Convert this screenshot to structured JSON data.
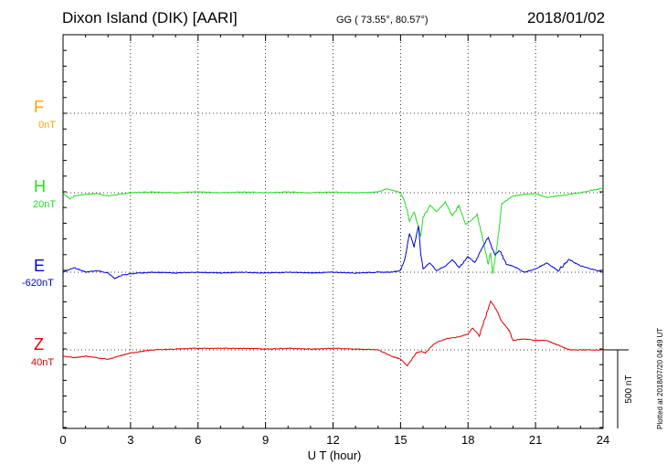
{
  "header": {
    "station": "Dixon Island (DIK)  [AARI]",
    "coords": "GG ( 73.55°,  80.57°)",
    "date": "2018/01/02"
  },
  "components": [
    {
      "label": "F",
      "baseline": "0nT",
      "color": "#ffa500"
    },
    {
      "label": "H",
      "baseline": "20nT",
      "color": "#22dd22"
    },
    {
      "label": "E",
      "baseline": "-620nT",
      "color": "#0000dd"
    },
    {
      "label": "Z",
      "baseline": "40nT",
      "color": "#dd0000"
    }
  ],
  "footer": {
    "scale_label": "500 nT",
    "plotted": "Plotted at 2018/07/20 04:49 UT"
  },
  "chart_data": {
    "type": "line",
    "title": "Dixon Island (DIK)  [AARI]",
    "xlabel": "U T (hour)",
    "ylabel": "",
    "xlim": [
      0,
      24
    ],
    "x_ticks": [
      0,
      3,
      6,
      9,
      12,
      15,
      18,
      21,
      24
    ],
    "grid": true,
    "scale_nT_per_division": 500,
    "series": [
      {
        "name": "F",
        "baseline_nT": 0,
        "color": "#ffa500",
        "x": [],
        "y": []
      },
      {
        "name": "H",
        "baseline_nT": 20,
        "color": "#22dd22",
        "x": [
          0,
          0.3,
          0.5,
          1,
          1.5,
          2,
          2.5,
          3,
          4,
          5,
          6,
          7,
          8,
          9,
          10,
          11,
          12,
          13,
          14,
          14.4,
          14.8,
          15,
          15.2,
          15.4,
          15.6,
          15.8,
          15.9,
          16,
          16.3,
          16.6,
          17,
          17.3,
          17.6,
          17.9,
          18.1,
          18.4,
          18.7,
          18.9,
          19,
          19.1,
          19.3,
          19.5,
          19.8,
          20,
          20.5,
          21,
          21.5,
          22,
          22.5,
          23,
          23.5,
          24
        ],
        "y": [
          0,
          -40,
          -20,
          -10,
          -5,
          -20,
          -10,
          0,
          5,
          0,
          5,
          0,
          5,
          0,
          5,
          0,
          5,
          0,
          5,
          25,
          10,
          0,
          -60,
          -180,
          -120,
          -220,
          -280,
          -160,
          -80,
          -120,
          -60,
          -150,
          -80,
          -200,
          -180,
          -140,
          -320,
          -460,
          -380,
          -520,
          -330,
          -70,
          -40,
          -20,
          -10,
          -5,
          -30,
          -20,
          -10,
          0,
          15,
          30
        ]
      },
      {
        "name": "E",
        "baseline_nT": -620,
        "color": "#0000dd",
        "x": [
          0,
          0.5,
          1,
          1.5,
          2,
          2.3,
          2.6,
          3,
          4,
          5,
          6,
          7,
          8,
          9,
          10,
          11,
          12,
          13,
          14,
          14.5,
          15,
          15.2,
          15.4,
          15.6,
          15.8,
          15.9,
          16,
          16.3,
          16.6,
          17,
          17.3,
          17.6,
          18,
          18.3,
          18.6,
          18.9,
          19,
          19.2,
          19.4,
          19.7,
          20,
          20.5,
          21,
          21.5,
          22,
          22.5,
          23,
          23.5,
          24
        ],
        "y": [
          0,
          30,
          0,
          10,
          -5,
          -40,
          -20,
          -10,
          0,
          -5,
          0,
          -5,
          0,
          -5,
          0,
          -5,
          0,
          -5,
          0,
          0,
          10,
          90,
          250,
          160,
          300,
          120,
          20,
          60,
          10,
          40,
          80,
          30,
          100,
          60,
          150,
          220,
          180,
          110,
          140,
          50,
          40,
          0,
          20,
          60,
          10,
          80,
          40,
          20,
          0
        ]
      },
      {
        "name": "Z",
        "baseline_nT": 40,
        "color": "#dd0000",
        "x": [
          0,
          0.5,
          1,
          2,
          2.5,
          3,
          4,
          5,
          6,
          7,
          8,
          9,
          10,
          11,
          12,
          13,
          14,
          14.6,
          15,
          15.3,
          15.5,
          15.7,
          15.9,
          16.1,
          16.5,
          17,
          17.5,
          18,
          18.2,
          18.5,
          18.8,
          19,
          19.2,
          19.5,
          19.8,
          20,
          20.5,
          21,
          21.5,
          22,
          22.5,
          23,
          23.5,
          24
        ],
        "y": [
          -40,
          -50,
          -40,
          -60,
          -40,
          -20,
          0,
          5,
          10,
          10,
          10,
          5,
          10,
          5,
          10,
          5,
          0,
          -40,
          -60,
          -100,
          -60,
          -20,
          -10,
          -20,
          40,
          70,
          80,
          100,
          140,
          90,
          220,
          310,
          270,
          180,
          130,
          60,
          70,
          60,
          60,
          30,
          0,
          0,
          0,
          0
        ]
      }
    ]
  }
}
